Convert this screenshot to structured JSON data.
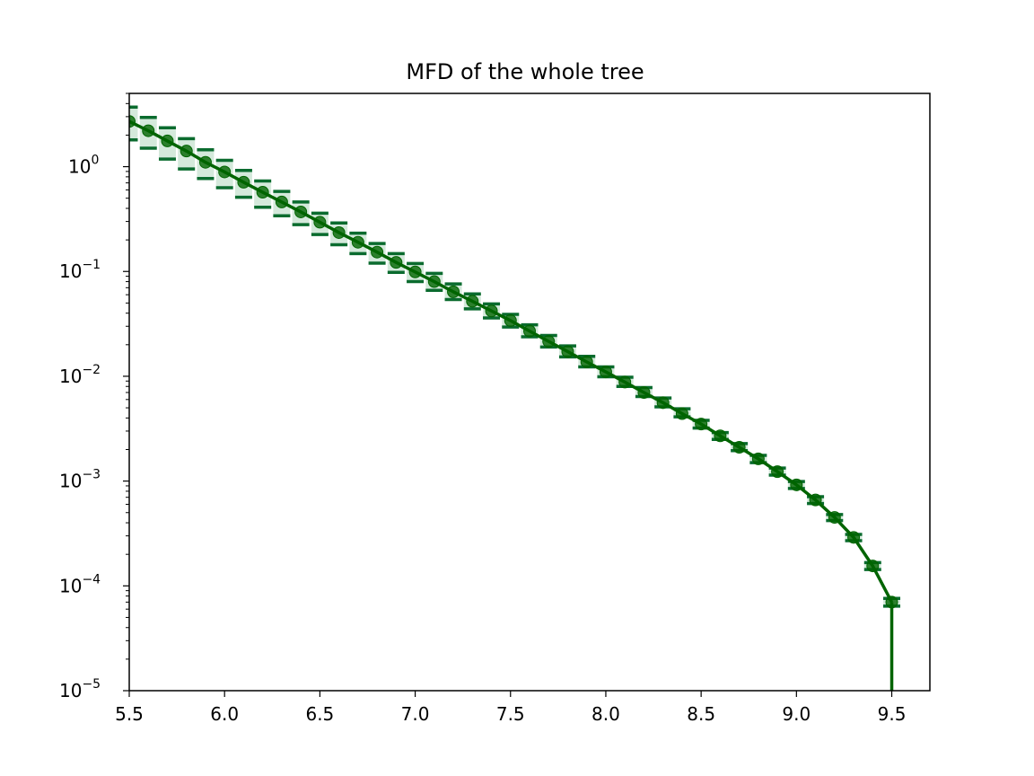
{
  "chart_data": {
    "type": "line",
    "title": "MFD of the whole tree",
    "xlabel": "",
    "ylabel": "",
    "xlim": [
      5.5,
      9.7
    ],
    "ylim": [
      1e-05,
      5
    ],
    "yscale": "log",
    "grid": false,
    "colors": {
      "line": "#006400",
      "band": "#3a9a5a",
      "errorbar": "#0a6b2e"
    },
    "x_ticks": [
      "5.5",
      "6.0",
      "6.5",
      "7.0",
      "7.5",
      "8.0",
      "8.5",
      "9.0",
      "9.5"
    ],
    "y_ticks": [
      {
        "base": "10",
        "exp": "0",
        "value": 1
      },
      {
        "base": "10",
        "exp": "−1",
        "value": 0.1
      },
      {
        "base": "10",
        "exp": "−2",
        "value": 0.01
      },
      {
        "base": "10",
        "exp": "−3",
        "value": 0.001
      },
      {
        "base": "10",
        "exp": "−4",
        "value": 0.0001
      },
      {
        "base": "10",
        "exp": "−5",
        "value": 1e-05
      }
    ],
    "series": [
      {
        "x": [
          5.5,
          5.6,
          5.7,
          5.8,
          5.9,
          6.0,
          6.1,
          6.2,
          6.3,
          6.4,
          6.5,
          6.6,
          6.7,
          6.8,
          6.9,
          7.0,
          7.1,
          7.2,
          7.3,
          7.4,
          7.5,
          7.6,
          7.7,
          7.8,
          7.9,
          8.0,
          8.1,
          8.2,
          8.3,
          8.4,
          8.5,
          8.6,
          8.7,
          8.8,
          8.9,
          9.0,
          9.1,
          9.2,
          9.3,
          9.4,
          9.5
        ],
        "y": [
          2.7,
          2.2,
          1.76,
          1.41,
          1.1,
          0.89,
          0.71,
          0.57,
          0.46,
          0.37,
          0.295,
          0.235,
          0.19,
          0.153,
          0.122,
          0.099,
          0.08,
          0.064,
          0.052,
          0.042,
          0.034,
          0.027,
          0.0215,
          0.0172,
          0.0137,
          0.011,
          0.0088,
          0.007,
          0.0056,
          0.0044,
          0.0035,
          0.0027,
          0.0021,
          0.00163,
          0.00123,
          0.00092,
          0.00066,
          0.00045,
          0.00029,
          0.000155,
          7e-05
        ],
        "y_lower": [
          1.8,
          1.5,
          1.18,
          0.95,
          0.77,
          0.63,
          0.51,
          0.41,
          0.34,
          0.28,
          0.225,
          0.18,
          0.148,
          0.12,
          0.098,
          0.08,
          0.066,
          0.054,
          0.044,
          0.036,
          0.0295,
          0.0238,
          0.019,
          0.0153,
          0.0123,
          0.0099,
          0.008,
          0.0064,
          0.0051,
          0.0041,
          0.0032,
          0.0025,
          0.00195,
          0.0015,
          0.00114,
          0.00085,
          0.00061,
          0.00042,
          0.00027,
          0.000143,
          6.4e-05
        ],
        "y_upper": [
          3.7,
          2.95,
          2.35,
          1.85,
          1.45,
          1.15,
          0.92,
          0.73,
          0.58,
          0.46,
          0.36,
          0.29,
          0.232,
          0.185,
          0.148,
          0.119,
          0.096,
          0.076,
          0.061,
          0.049,
          0.039,
          0.031,
          0.0245,
          0.0195,
          0.0155,
          0.0123,
          0.0098,
          0.0078,
          0.0062,
          0.0049,
          0.0038,
          0.0029,
          0.00228,
          0.00176,
          0.00133,
          0.00099,
          0.00071,
          0.00048,
          0.00031,
          0.000167,
          7.6e-05
        ]
      }
    ],
    "drop_to_axis_at_x": 9.5
  }
}
